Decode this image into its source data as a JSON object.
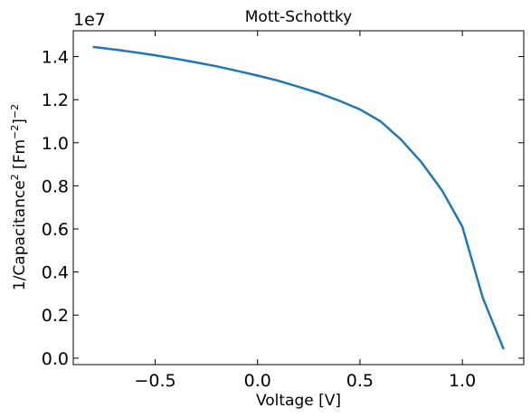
{
  "chart_data": {
    "type": "line",
    "title": "Mott-Schottky",
    "xlabel": "Voltage [V]",
    "ylabel_parts": [
      "1/Capacitance",
      "2",
      " [Fm",
      "−2",
      "]",
      "−2"
    ],
    "y_offset_label": "1e7",
    "xlim": [
      -0.9,
      1.3
    ],
    "ylim": [
      -0.3,
      15.2
    ],
    "y_scale": 10000000,
    "x_ticks": [
      {
        "value": -0.5,
        "label": "−0.5"
      },
      {
        "value": 0.0,
        "label": "0.0"
      },
      {
        "value": 0.5,
        "label": "0.5"
      },
      {
        "value": 1.0,
        "label": "1.0"
      }
    ],
    "y_ticks": [
      {
        "value": 0.0,
        "label": "0.0"
      },
      {
        "value": 2.0,
        "label": "0.2"
      },
      {
        "value": 4.0,
        "label": "0.4"
      },
      {
        "value": 6.0,
        "label": "0.6"
      },
      {
        "value": 8.0,
        "label": "0.8"
      },
      {
        "value": 10.0,
        "label": "1.0"
      },
      {
        "value": 12.0,
        "label": "1.2"
      },
      {
        "value": 14.0,
        "label": "1.4"
      }
    ],
    "grid": false,
    "series": [
      {
        "color": "#1f77b4",
        "x": [
          -0.8,
          -0.7,
          -0.6,
          -0.5,
          -0.4,
          -0.3,
          -0.2,
          -0.1,
          0.0,
          0.1,
          0.2,
          0.3,
          0.4,
          0.5,
          0.6,
          0.7,
          0.8,
          0.9,
          1.0,
          1.1,
          1.2
        ],
        "y": [
          14.45,
          14.33,
          14.2,
          14.06,
          13.9,
          13.73,
          13.55,
          13.34,
          13.12,
          12.88,
          12.6,
          12.3,
          11.95,
          11.55,
          11.0,
          10.15,
          9.1,
          7.8,
          6.1,
          2.8,
          0.45
        ]
      }
    ]
  }
}
